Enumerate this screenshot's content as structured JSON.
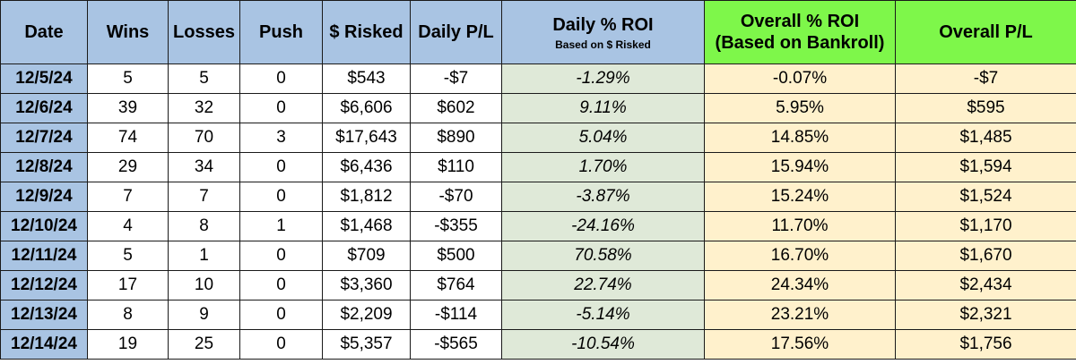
{
  "headers": {
    "date": "Date",
    "wins": "Wins",
    "losses": "Losses",
    "push": "Push",
    "risked": "$ Risked",
    "daily_pl": "Daily P/L",
    "daily_roi": "Daily % ROI",
    "daily_roi_sub": "Based on $ Risked",
    "overall_roi_line1": "Overall % ROI",
    "overall_roi_line2": "(Based on Bankroll)",
    "overall_pl": "Overall P/L"
  },
  "rows": [
    {
      "date": "12/5/24",
      "wins": "5",
      "losses": "5",
      "push": "0",
      "risked": "$543",
      "daily_pl": "-$7",
      "daily_roi": "-1.29%",
      "overall_roi": "-0.07%",
      "overall_pl": "-$7"
    },
    {
      "date": "12/6/24",
      "wins": "39",
      "losses": "32",
      "push": "0",
      "risked": "$6,606",
      "daily_pl": "$602",
      "daily_roi": "9.11%",
      "overall_roi": "5.95%",
      "overall_pl": "$595"
    },
    {
      "date": "12/7/24",
      "wins": "74",
      "losses": "70",
      "push": "3",
      "risked": "$17,643",
      "daily_pl": "$890",
      "daily_roi": "5.04%",
      "overall_roi": "14.85%",
      "overall_pl": "$1,485"
    },
    {
      "date": "12/8/24",
      "wins": "29",
      "losses": "34",
      "push": "0",
      "risked": "$6,436",
      "daily_pl": "$110",
      "daily_roi": "1.70%",
      "overall_roi": "15.94%",
      "overall_pl": "$1,594"
    },
    {
      "date": "12/9/24",
      "wins": "7",
      "losses": "7",
      "push": "0",
      "risked": "$1,812",
      "daily_pl": "-$70",
      "daily_roi": "-3.87%",
      "overall_roi": "15.24%",
      "overall_pl": "$1,524"
    },
    {
      "date": "12/10/24",
      "wins": "4",
      "losses": "8",
      "push": "1",
      "risked": "$1,468",
      "daily_pl": "-$355",
      "daily_roi": "-24.16%",
      "overall_roi": "11.70%",
      "overall_pl": "$1,170"
    },
    {
      "date": "12/11/24",
      "wins": "5",
      "losses": "1",
      "push": "0",
      "risked": "$709",
      "daily_pl": "$500",
      "daily_roi": "70.58%",
      "overall_roi": "16.70%",
      "overall_pl": "$1,670"
    },
    {
      "date": "12/12/24",
      "wins": "17",
      "losses": "10",
      "push": "0",
      "risked": "$3,360",
      "daily_pl": "$764",
      "daily_roi": "22.74%",
      "overall_roi": "24.34%",
      "overall_pl": "$2,434"
    },
    {
      "date": "12/13/24",
      "wins": "8",
      "losses": "9",
      "push": "0",
      "risked": "$2,209",
      "daily_pl": "-$114",
      "daily_roi": "-5.14%",
      "overall_roi": "23.21%",
      "overall_pl": "$2,321"
    },
    {
      "date": "12/14/24",
      "wins": "19",
      "losses": "25",
      "push": "0",
      "risked": "$5,357",
      "daily_pl": "-$565",
      "daily_roi": "-10.54%",
      "overall_roi": "17.56%",
      "overall_pl": "$1,756"
    }
  ],
  "colors": {
    "header_blue": "#a9c4e3",
    "header_green": "#7ef74a",
    "daily_fill": "#dfe9d8",
    "overall_fill": "#fff1cc"
  }
}
